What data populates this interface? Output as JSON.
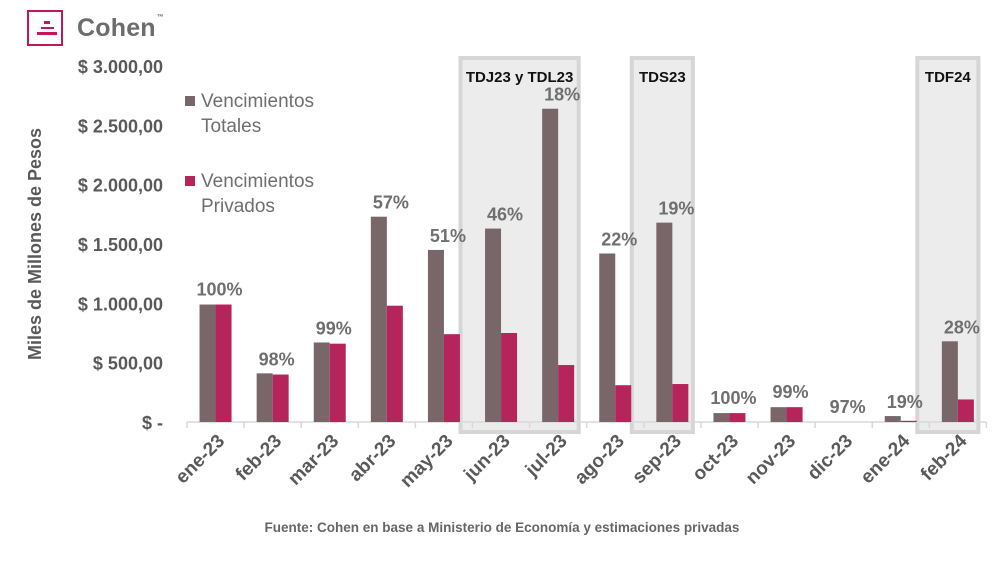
{
  "brand": {
    "name": "Cohen",
    "trademark": "™",
    "colors": {
      "primary": "#c0185a",
      "text": "#6c6c6c"
    }
  },
  "chart_data": {
    "type": "bar",
    "ylabel": "Miles de Millones de Pesos",
    "ylim": [
      0,
      3000
    ],
    "yticks": [
      {
        "value": 0,
        "label": "$ -"
      },
      {
        "value": 500,
        "label": "$ 500,00"
      },
      {
        "value": 1000,
        "label": "$ 1.000,00"
      },
      {
        "value": 1500,
        "label": "$ 1.500,00"
      },
      {
        "value": 2000,
        "label": "$ 2.000,00"
      },
      {
        "value": 2500,
        "label": "$ 2.500,00"
      },
      {
        "value": 3000,
        "label": "$ 3.000,00"
      }
    ],
    "categories": [
      "ene-23",
      "feb-23",
      "mar-23",
      "abr-23",
      "may-23",
      "jun-23",
      "jul-23",
      "ago-23",
      "sep-23",
      "oct-23",
      "nov-23",
      "dic-23",
      "ene-24",
      "feb-24"
    ],
    "series": [
      {
        "name": "Vencimientos Totales",
        "color": "#786668",
        "values": [
          990,
          410,
          670,
          1730,
          1450,
          1630,
          2640,
          1420,
          1680,
          75,
          125,
          0,
          50,
          680
        ]
      },
      {
        "name": "Vencimientos Privados",
        "color": "#b5245b",
        "values": [
          990,
          400,
          660,
          980,
          740,
          750,
          480,
          310,
          320,
          75,
          125,
          0,
          10,
          190
        ]
      }
    ],
    "data_labels": [
      "100%",
      "98%",
      "99%",
      "57%",
      "51%",
      "46%",
      "18%",
      "22%",
      "19%",
      "100%",
      "99%",
      "97%",
      "19%",
      "28%"
    ],
    "legend": {
      "position": "top-left",
      "entries": [
        {
          "lines": [
            "Vencimientos",
            "Totales"
          ],
          "color": "#786668"
        },
        {
          "lines": [
            "Vencimientos",
            "Privados"
          ],
          "color": "#b5245b"
        }
      ]
    },
    "highlight_boxes": [
      {
        "label": "TDJ23 y TDL23",
        "from": "jun-23",
        "to": "jul-23"
      },
      {
        "label": "TDS23",
        "from": "sep-23",
        "to": "sep-23"
      },
      {
        "label": "TDF24",
        "from": "feb-24",
        "to": "feb-24"
      }
    ],
    "grid": false
  },
  "source": "Fuente: Cohen en base a Ministerio de Economía y estimaciones privadas"
}
